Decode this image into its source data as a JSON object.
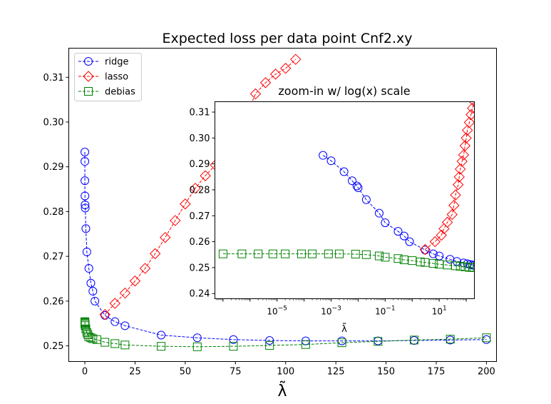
{
  "chart_data": [
    {
      "type": "line",
      "title": "Expected loss per data point Cnf2.xy",
      "xlabel": "λ̃",
      "ylabel": "",
      "xlim": [
        -8,
        205
      ],
      "ylim": [
        0.2465,
        0.3165
      ],
      "xticks": [
        0,
        25,
        50,
        75,
        100,
        125,
        150,
        175,
        200
      ],
      "xtick_labels": [
        "0",
        "25",
        "50",
        "75",
        "100",
        "125",
        "150",
        "175",
        "200"
      ],
      "yticks": [
        0.25,
        0.26,
        0.27,
        0.28,
        0.29,
        0.3,
        0.31
      ],
      "ytick_labels": [
        "0.25",
        "0.26",
        "0.27",
        "0.28",
        "0.29",
        "0.30",
        "0.31"
      ],
      "grid": false,
      "legend": "top-left",
      "series": [
        {
          "name": "ridge",
          "color": "#0000ff",
          "marker": "circle",
          "points": [
            [
              0.0005,
              0.2933
            ],
            [
              0.002,
              0.2912
            ],
            [
              0.01,
              0.2869
            ],
            [
              0.05,
              0.2835
            ],
            [
              0.1,
              0.2815
            ],
            [
              0.2,
              0.2808
            ],
            [
              0.5,
              0.2762
            ],
            [
              1,
              0.271
            ],
            [
              2,
              0.2673
            ],
            [
              3,
              0.264
            ],
            [
              4,
              0.2622
            ],
            [
              5,
              0.26
            ],
            [
              10,
              0.2568
            ],
            [
              15,
              0.2554
            ],
            [
              20,
              0.2545
            ],
            [
              38,
              0.2524
            ],
            [
              56,
              0.2518
            ],
            [
              74,
              0.2514
            ],
            [
              92,
              0.2512
            ],
            [
              110,
              0.2511
            ],
            [
              128,
              0.2511
            ],
            [
              146,
              0.2511
            ],
            [
              164,
              0.2512
            ],
            [
              182,
              0.2513
            ],
            [
              200,
              0.2514
            ]
          ]
        },
        {
          "name": "lasso",
          "color": "#ff0000",
          "marker": "diamond",
          "points": [
            [
              10,
              0.257
            ],
            [
              15,
              0.2595
            ],
            [
              20,
              0.2618
            ],
            [
              25,
              0.2645
            ],
            [
              30,
              0.2673
            ],
            [
              35,
              0.2706
            ],
            [
              40,
              0.2742
            ],
            [
              45,
              0.278
            ],
            [
              50,
              0.2817
            ],
            [
              55,
              0.2852
            ],
            [
              60,
              0.288
            ],
            [
              65,
              0.2904
            ],
            [
              70,
              0.2934
            ],
            [
              75,
              0.297
            ],
            [
              80,
              0.301
            ],
            [
              85,
              0.3063
            ],
            [
              90,
              0.3088
            ],
            [
              95,
              0.3107
            ],
            [
              100,
              0.312
            ],
            [
              105,
              0.314
            ]
          ]
        },
        {
          "name": "debias",
          "color": "#008000",
          "marker": "square",
          "points": [
            [
              0.0005,
              0.2554
            ],
            [
              0.002,
              0.2553
            ],
            [
              0.01,
              0.2552
            ],
            [
              0.05,
              0.255
            ],
            [
              0.1,
              0.2548
            ],
            [
              0.2,
              0.2545
            ],
            [
              0.5,
              0.2538
            ],
            [
              1,
              0.253
            ],
            [
              1.5,
              0.2525
            ],
            [
              2,
              0.252
            ],
            [
              3,
              0.2518
            ],
            [
              4,
              0.2516
            ],
            [
              6,
              0.2514
            ],
            [
              10,
              0.2508
            ],
            [
              15,
              0.2505
            ],
            [
              20,
              0.2502
            ],
            [
              38,
              0.2499
            ],
            [
              56,
              0.2498
            ],
            [
              74,
              0.2499
            ],
            [
              92,
              0.2501
            ],
            [
              110,
              0.2503
            ],
            [
              128,
              0.2507
            ],
            [
              146,
              0.251
            ],
            [
              164,
              0.2513
            ],
            [
              182,
              0.2515
            ],
            [
              200,
              0.2518
            ]
          ]
        }
      ]
    },
    {
      "type": "line",
      "title": "zoom-in w/ log(x) scale",
      "xlabel": "λ̃",
      "ylabel": "",
      "xscale": "log",
      "xlim_exp": [
        -7.3,
        2.3
      ],
      "ylim": [
        0.238,
        0.314
      ],
      "xticks_exp": [
        -5,
        -3,
        -1,
        1
      ],
      "xtick_base": "10",
      "yticks": [
        0.24,
        0.25,
        0.26,
        0.27,
        0.28,
        0.29,
        0.3,
        0.31
      ],
      "ytick_labels": [
        "0.24",
        "0.25",
        "0.26",
        "0.27",
        "0.28",
        "0.29",
        "0.30",
        "0.31"
      ],
      "grid": false,
      "series": [
        {
          "ref": "ridge",
          "color": "#0000ff",
          "marker": "circle",
          "points": [
            [
              0.0005,
              0.2933
            ],
            [
              0.001,
              0.2912
            ],
            [
              0.003,
              0.287
            ],
            [
              0.006,
              0.2835
            ],
            [
              0.009,
              0.2815
            ],
            [
              0.01,
              0.2808
            ],
            [
              0.02,
              0.2762
            ],
            [
              0.06,
              0.271
            ],
            [
              0.1,
              0.2673
            ],
            [
              0.3,
              0.264
            ],
            [
              0.5,
              0.2622
            ],
            [
              0.8,
              0.26
            ],
            [
              3,
              0.2568
            ],
            [
              6,
              0.2553
            ],
            [
              10,
              0.2545
            ],
            [
              25,
              0.2532
            ],
            [
              45,
              0.2524
            ],
            [
              80,
              0.2518
            ],
            [
              110,
              0.2515
            ],
            [
              140,
              0.2512
            ],
            [
              170,
              0.251
            ],
            [
              200,
              0.2509
            ]
          ]
        },
        {
          "ref": "lasso",
          "color": "#ff0000",
          "marker": "diamond",
          "points": [
            [
              3,
              0.257
            ],
            [
              7,
              0.26
            ],
            [
              12,
              0.2625
            ],
            [
              15,
              0.265
            ],
            [
              20,
              0.2675
            ],
            [
              30,
              0.2705
            ],
            [
              35,
              0.274
            ],
            [
              40,
              0.278
            ],
            [
              50,
              0.282
            ],
            [
              55,
              0.285
            ],
            [
              60,
              0.288
            ],
            [
              70,
              0.291
            ],
            [
              80,
              0.2935
            ],
            [
              90,
              0.297
            ],
            [
              100,
              0.3
            ],
            [
              110,
              0.303
            ],
            [
              130,
              0.306
            ],
            [
              150,
              0.309
            ],
            [
              170,
              0.3115
            ],
            [
              200,
              0.314
            ]
          ]
        },
        {
          "ref": "debias",
          "color": "#008000",
          "marker": "square",
          "points": [
            [
              1e-07,
              0.2553
            ],
            [
              5e-07,
              0.2553
            ],
            [
              2e-06,
              0.2553
            ],
            [
              7e-06,
              0.2553
            ],
            [
              2e-05,
              0.2553
            ],
            [
              8e-05,
              0.2553
            ],
            [
              0.0002,
              0.2553
            ],
            [
              0.0008,
              0.2553
            ],
            [
              0.002,
              0.2553
            ],
            [
              0.008,
              0.2552
            ],
            [
              0.02,
              0.255
            ],
            [
              0.06,
              0.2545
            ],
            [
              0.1,
              0.254
            ],
            [
              0.3,
              0.2535
            ],
            [
              0.5,
              0.253
            ],
            [
              1,
              0.2527
            ],
            [
              2,
              0.2522
            ],
            [
              3,
              0.252
            ],
            [
              6,
              0.2516
            ],
            [
              10,
              0.2513
            ],
            [
              20,
              0.251
            ],
            [
              40,
              0.2507
            ],
            [
              60,
              0.2505
            ],
            [
              90,
              0.2503
            ],
            [
              130,
              0.2501
            ],
            [
              170,
              0.25
            ],
            [
              200,
              0.25
            ]
          ]
        }
      ]
    }
  ]
}
